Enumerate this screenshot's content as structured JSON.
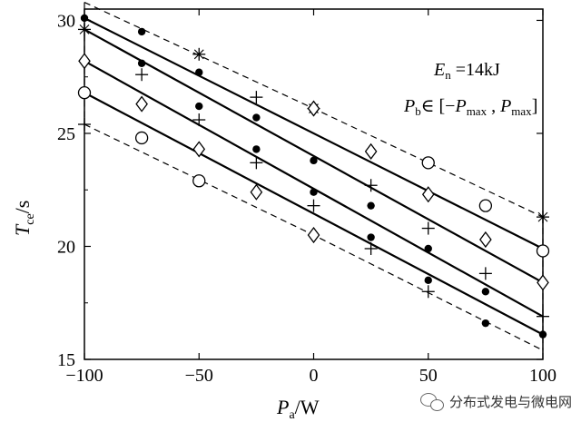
{
  "chart_data": {
    "type": "line",
    "xlabel": "P",
    "xlabel_sub": "a",
    "xlabel_unit": "/W",
    "ylabel": "T",
    "ylabel_sub": "ce",
    "ylabel_unit": "/s",
    "xlim": [
      -100,
      100
    ],
    "ylim": [
      15,
      30.5
    ],
    "xticks": [
      -100,
      -50,
      0,
      50,
      100
    ],
    "xtick_labels": [
      "−100",
      "−50",
      "0",
      "50",
      "100"
    ],
    "yticks": [
      15,
      20,
      25,
      30
    ],
    "ytick_labels": [
      "15",
      "20",
      "25",
      "30"
    ],
    "grid": false,
    "annotation_line1": {
      "sym": "E",
      "sub": "n",
      "rest": " =14kJ"
    },
    "annotation_line2": {
      "sym": "P",
      "sub": "b",
      "rest": "∈ [−",
      "sym2": "P",
      "sub2": "max",
      "mid": " , ",
      "sym3": "P",
      "sub3": "max",
      "end": "]"
    },
    "boundary_lines": {
      "style": "dashed",
      "upper": [
        [
          -100,
          30.8
        ],
        [
          0,
          26.1
        ],
        [
          100,
          21.3
        ]
      ],
      "lower": [
        [
          -100,
          25.4
        ],
        [
          0,
          20.5
        ],
        [
          100,
          15.4
        ]
      ]
    },
    "series": [
      {
        "marker": "asterisk",
        "x": [
          -100,
          -50,
          0
        ],
        "y": [
          29.6,
          28.5,
          26.1
        ],
        "line": false
      },
      {
        "marker": "circle",
        "x": [
          -100,
          -50
        ],
        "y": [
          26.8,
          22.9
        ],
        "line": false
      },
      {
        "marker": "diamond",
        "x": [
          -100,
          -75,
          -50,
          -25,
          0
        ],
        "y": [
          28.2,
          26.3,
          24.3,
          22.4,
          20.5
        ],
        "line": false
      },
      {
        "marker": "circle",
        "x": [
          -75
        ],
        "y": [
          24.8
        ],
        "line": false
      },
      {
        "marker": "cross",
        "x": [
          -75,
          -25,
          25,
          50,
          75,
          100
        ],
        "y": [
          27.6,
          26.6,
          22.7,
          20.8,
          18.8,
          16.9
        ],
        "line": false
      },
      {
        "marker": "dot",
        "x": [
          -100,
          -75,
          -50,
          -25,
          0,
          25,
          50,
          75,
          100
        ],
        "y": [
          30.1,
          29.5,
          27.7,
          25.7,
          23.8,
          21.8,
          19.9,
          18.0,
          16.1
        ],
        "line": true
      },
      {
        "marker": "dot",
        "x": [
          -75,
          -50,
          -25,
          0,
          25,
          50,
          75
        ],
        "y": [
          28.1,
          26.2,
          24.3,
          22.4,
          20.4,
          18.5,
          16.6
        ],
        "line": true
      },
      {
        "marker": "cross",
        "x": [
          -100,
          -50,
          -25,
          0,
          25,
          50
        ],
        "y": [
          25.4,
          25.6,
          23.7,
          21.8,
          19.9,
          18.0
        ],
        "line": false
      },
      {
        "marker": "diamond",
        "x": [
          0,
          25,
          50,
          75,
          100
        ],
        "y": [
          26.1,
          24.2,
          22.3,
          20.3,
          18.4
        ],
        "line": false
      },
      {
        "marker": "circle",
        "x": [
          50,
          75,
          100
        ],
        "y": [
          23.7,
          21.8,
          19.8
        ],
        "line": false
      },
      {
        "marker": "asterisk",
        "x": [
          100
        ],
        "y": [
          21.3
        ],
        "line": false
      }
    ],
    "solid_lines": [
      [
        [
          -100,
          30.1
        ],
        [
          100,
          19.9
        ]
      ],
      [
        [
          -100,
          29.6
        ],
        [
          100,
          18.4
        ]
      ],
      [
        [
          -100,
          28.2
        ],
        [
          100,
          16.9
        ]
      ],
      [
        [
          -100,
          26.8
        ],
        [
          100,
          16.1
        ]
      ]
    ]
  },
  "watermark": {
    "text": "分布式发电与微电网",
    "icon": "wechat-icon"
  }
}
